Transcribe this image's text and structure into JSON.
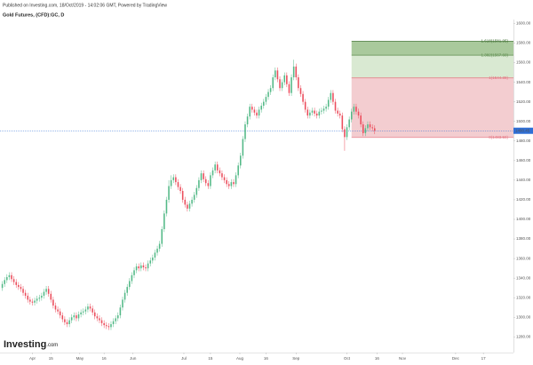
{
  "header": {
    "published": "Published on Investing.com, 18/Oct/2019 - 14:02:06 GMT, Powered by TradingView",
    "symbol": "Gold Futures, (CFD):GC, D"
  },
  "logo": {
    "name": "Investing",
    "suffix": ".com"
  },
  "chart_data": {
    "type": "candlestick",
    "up_color": "#53b987",
    "down_color": "#eb4d5c",
    "last_price_color": "#2f6fd6",
    "xlim": [
      -1,
      221
    ],
    "ylim": [
      1264,
      1604
    ],
    "xticks": [
      {
        "value": 13,
        "label": "Apr"
      },
      {
        "value": 21,
        "label": "15"
      },
      {
        "value": 33.5,
        "label": "May"
      },
      {
        "value": 44,
        "label": "16"
      },
      {
        "value": 56.5,
        "label": "Jun"
      },
      {
        "value": 78.5,
        "label": "Jul"
      },
      {
        "value": 90,
        "label": "15"
      },
      {
        "value": 102.7,
        "label": "Aug"
      },
      {
        "value": 114,
        "label": "16"
      },
      {
        "value": 127,
        "label": "Sep"
      },
      {
        "value": 149,
        "label": "Oct"
      },
      {
        "value": 162,
        "label": "16"
      },
      {
        "value": 173,
        "label": "Nov"
      },
      {
        "value": 196,
        "label": "Dec"
      },
      {
        "value": 208,
        "label": "17"
      }
    ],
    "yticks": [
      {
        "value": 1280,
        "label": "1280.00"
      },
      {
        "value": 1300,
        "label": "1300.00"
      },
      {
        "value": 1320,
        "label": "1320.00"
      },
      {
        "value": 1340,
        "label": "1340.00"
      },
      {
        "value": 1360,
        "label": "1360.00"
      },
      {
        "value": 1380,
        "label": "1380.00"
      },
      {
        "value": 1400,
        "label": "1400.00"
      },
      {
        "value": 1420,
        "label": "1420.00"
      },
      {
        "value": 1440,
        "label": "1440.00"
      },
      {
        "value": 1460,
        "label": "1460.00"
      },
      {
        "value": 1480,
        "label": "1480.00"
      },
      {
        "value": 1500,
        "label": "1500.00"
      },
      {
        "value": 1520,
        "label": "1520.00"
      },
      {
        "value": 1540,
        "label": "1540.00"
      },
      {
        "value": 1560,
        "label": "1560.00"
      },
      {
        "value": 1580,
        "label": "1580.00"
      },
      {
        "value": 1600,
        "label": "1600.00"
      }
    ],
    "open": [
      1330,
      1334,
      1338,
      1341,
      1343,
      1339,
      1336,
      1333,
      1331,
      1329,
      1325,
      1322,
      1318,
      1316,
      1315,
      1317,
      1319,
      1320,
      1322,
      1326,
      1329,
      1324,
      1318,
      1312,
      1308,
      1306,
      1302,
      1298,
      1295,
      1293,
      1297,
      1300,
      1302,
      1299,
      1303,
      1305,
      1306,
      1308,
      1311,
      1309,
      1305,
      1301,
      1299,
      1297,
      1294,
      1292,
      1291,
      1290,
      1293,
      1296,
      1299,
      1302,
      1310,
      1318,
      1325,
      1331,
      1337,
      1343,
      1348,
      1352,
      1350,
      1353,
      1351,
      1350,
      1355,
      1358,
      1361,
      1366,
      1370,
      1375,
      1390,
      1406,
      1420,
      1434,
      1440,
      1443,
      1438,
      1433,
      1429,
      1420,
      1415,
      1411,
      1416,
      1420,
      1425,
      1432,
      1440,
      1447,
      1441,
      1437,
      1434,
      1445,
      1450,
      1456,
      1450,
      1447,
      1443,
      1440,
      1436,
      1434,
      1438,
      1436,
      1445,
      1455,
      1465,
      1482,
      1497,
      1505,
      1515,
      1512,
      1509,
      1506,
      1512,
      1516,
      1520,
      1525,
      1530,
      1534,
      1545,
      1552,
      1543,
      1534,
      1540,
      1547,
      1538,
      1529,
      1545,
      1556,
      1545,
      1534,
      1528,
      1520,
      1512,
      1506,
      1509,
      1511,
      1508,
      1506,
      1510,
      1511,
      1513,
      1515,
      1522,
      1529,
      1520,
      1511,
      1508,
      1506,
      1492,
      1484,
      1494,
      1502,
      1510,
      1515,
      1510,
      1506,
      1497,
      1488,
      1493,
      1497,
      1494,
      1493
    ],
    "high": [
      1337,
      1341,
      1344,
      1346,
      1346,
      1342,
      1339,
      1336,
      1334,
      1332,
      1328,
      1325,
      1321,
      1319,
      1320,
      1322,
      1323,
      1325,
      1329,
      1332,
      1332,
      1327,
      1321,
      1315,
      1311,
      1309,
      1305,
      1301,
      1298,
      1300,
      1303,
      1305,
      1305,
      1306,
      1308,
      1309,
      1311,
      1314,
      1314,
      1312,
      1308,
      1304,
      1302,
      1300,
      1297,
      1295,
      1294,
      1296,
      1299,
      1302,
      1305,
      1313,
      1321,
      1328,
      1334,
      1340,
      1346,
      1351,
      1355,
      1355,
      1356,
      1356,
      1354,
      1358,
      1361,
      1364,
      1369,
      1373,
      1378,
      1393,
      1409,
      1423,
      1440,
      1445,
      1446,
      1446,
      1441,
      1436,
      1432,
      1423,
      1418,
      1419,
      1423,
      1428,
      1435,
      1443,
      1450,
      1450,
      1444,
      1440,
      1448,
      1453,
      1459,
      1459,
      1453,
      1450,
      1446,
      1443,
      1439,
      1441,
      1441,
      1448,
      1458,
      1468,
      1485,
      1500,
      1508,
      1518,
      1518,
      1515,
      1512,
      1515,
      1519,
      1523,
      1528,
      1533,
      1537,
      1548,
      1555,
      1555,
      1546,
      1543,
      1550,
      1550,
      1541,
      1548,
      1563,
      1559,
      1548,
      1537,
      1531,
      1523,
      1515,
      1512,
      1514,
      1514,
      1511,
      1513,
      1514,
      1516,
      1518,
      1525,
      1532,
      1532,
      1523,
      1514,
      1511,
      1509,
      1495,
      1497,
      1505,
      1513,
      1518,
      1518,
      1513,
      1509,
      1500,
      1496,
      1500,
      1500,
      1497,
      1496
    ],
    "low": [
      1327,
      1331,
      1335,
      1338,
      1336,
      1333,
      1330,
      1328,
      1326,
      1322,
      1319,
      1315,
      1313,
      1312,
      1312,
      1314,
      1316,
      1317,
      1319,
      1323,
      1321,
      1315,
      1309,
      1305,
      1303,
      1299,
      1295,
      1292,
      1290,
      1290,
      1294,
      1297,
      1296,
      1296,
      1300,
      1302,
      1303,
      1305,
      1306,
      1302,
      1298,
      1296,
      1294,
      1291,
      1289,
      1288,
      1287,
      1287,
      1290,
      1293,
      1296,
      1299,
      1307,
      1315,
      1322,
      1328,
      1334,
      1340,
      1345,
      1347,
      1347,
      1348,
      1347,
      1347,
      1352,
      1355,
      1358,
      1363,
      1367,
      1372,
      1387,
      1403,
      1417,
      1431,
      1437,
      1435,
      1430,
      1426,
      1417,
      1412,
      1408,
      1408,
      1413,
      1417,
      1422,
      1429,
      1437,
      1438,
      1434,
      1431,
      1431,
      1442,
      1447,
      1447,
      1444,
      1440,
      1437,
      1433,
      1431,
      1431,
      1433,
      1433,
      1442,
      1452,
      1462,
      1479,
      1494,
      1502,
      1509,
      1506,
      1503,
      1503,
      1509,
      1513,
      1517,
      1522,
      1527,
      1531,
      1542,
      1540,
      1531,
      1531,
      1537,
      1535,
      1526,
      1526,
      1542,
      1542,
      1531,
      1525,
      1517,
      1509,
      1503,
      1503,
      1506,
      1505,
      1503,
      1503,
      1507,
      1508,
      1510,
      1512,
      1519,
      1517,
      1508,
      1505,
      1503,
      1489,
      1470,
      1481,
      1491,
      1499,
      1507,
      1507,
      1503,
      1494,
      1485,
      1485,
      1490,
      1491,
      1490,
      1487
    ],
    "close": [
      1334,
      1338,
      1341,
      1343,
      1339,
      1336,
      1333,
      1331,
      1329,
      1325,
      1322,
      1318,
      1316,
      1315,
      1317,
      1319,
      1320,
      1322,
      1326,
      1329,
      1324,
      1318,
      1312,
      1308,
      1306,
      1302,
      1298,
      1295,
      1293,
      1297,
      1300,
      1302,
      1299,
      1303,
      1305,
      1306,
      1308,
      1311,
      1309,
      1305,
      1301,
      1299,
      1297,
      1294,
      1292,
      1291,
      1290,
      1293,
      1296,
      1299,
      1302,
      1310,
      1318,
      1325,
      1331,
      1337,
      1343,
      1348,
      1352,
      1350,
      1353,
      1351,
      1350,
      1355,
      1358,
      1361,
      1366,
      1370,
      1375,
      1390,
      1406,
      1420,
      1434,
      1440,
      1443,
      1438,
      1433,
      1429,
      1420,
      1415,
      1411,
      1416,
      1420,
      1425,
      1432,
      1440,
      1447,
      1441,
      1437,
      1434,
      1445,
      1450,
      1456,
      1450,
      1447,
      1443,
      1440,
      1436,
      1434,
      1438,
      1436,
      1445,
      1455,
      1465,
      1482,
      1497,
      1505,
      1515,
      1512,
      1509,
      1506,
      1512,
      1516,
      1520,
      1525,
      1530,
      1534,
      1545,
      1552,
      1543,
      1534,
      1540,
      1547,
      1538,
      1529,
      1545,
      1556,
      1545,
      1534,
      1528,
      1520,
      1512,
      1506,
      1509,
      1511,
      1508,
      1506,
      1510,
      1511,
      1513,
      1515,
      1522,
      1529,
      1520,
      1511,
      1508,
      1506,
      1492,
      1484,
      1494,
      1502,
      1510,
      1515,
      1510,
      1506,
      1497,
      1488,
      1493,
      1497,
      1494,
      1493,
      1490.45
    ],
    "fib": {
      "start": 151,
      "levels": [
        {
          "value": 1483.59,
          "label": "0(1483.59)",
          "color": "#e57380"
        },
        {
          "value": 1544.38,
          "label": "1(1544.38)",
          "color": "#e57380",
          "fill": "#f3cdd0"
        },
        {
          "value": 1567.6,
          "label": "1.382(1567.60)",
          "color": "#5a8a4a",
          "fill": "#d9e9d2"
        },
        {
          "value": 1581.95,
          "label": "1.618(1581.95)",
          "color": "#3f6e33",
          "fill": "#a9c99c"
        }
      ]
    }
  }
}
